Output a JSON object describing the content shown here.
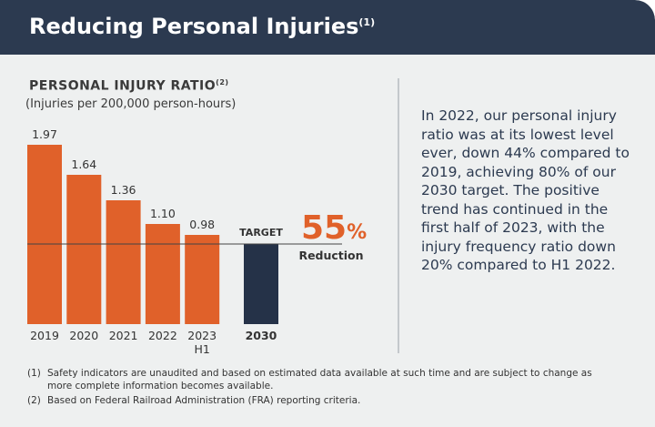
{
  "header": {
    "title": "Reducing Personal Injuries",
    "note": "(1)"
  },
  "chart_data": {
    "type": "bar",
    "title": "PERSONAL INJURY RATIO",
    "title_note": "(2)",
    "subtitle": "(Injuries per 200,000 person-hours)",
    "categories": [
      "2019",
      "2020",
      "2021",
      "2022",
      "2023 H1"
    ],
    "values": [
      1.97,
      1.64,
      1.36,
      1.1,
      0.98
    ],
    "value_labels": [
      "1.97",
      "1.64",
      "1.36",
      "1.10",
      "0.98"
    ],
    "color": "#e0612a",
    "target": {
      "label": "TARGET",
      "category": "2030",
      "value": 0.88,
      "color": "#253248"
    },
    "callout": {
      "number": "55",
      "unit": "%",
      "label": "Reduction"
    },
    "ylim": [
      0,
      2
    ]
  },
  "text": "In 2022, our personal injury ratio was at its lowest level ever, down 44% compared to 2019, achieving 80% of our 2030 target. The positive trend has continued in the first half of 2023, with the injury frequency ratio down 20% compared to H1 2022.",
  "footnotes": [
    "Safety indicators are unaudited and based on estimated data available at such time and are subject to change as more complete information becomes available.",
    "Based on Federal Railroad Administration (FRA) reporting criteria."
  ],
  "footnote_markers": [
    "(1)",
    "(2)"
  ]
}
